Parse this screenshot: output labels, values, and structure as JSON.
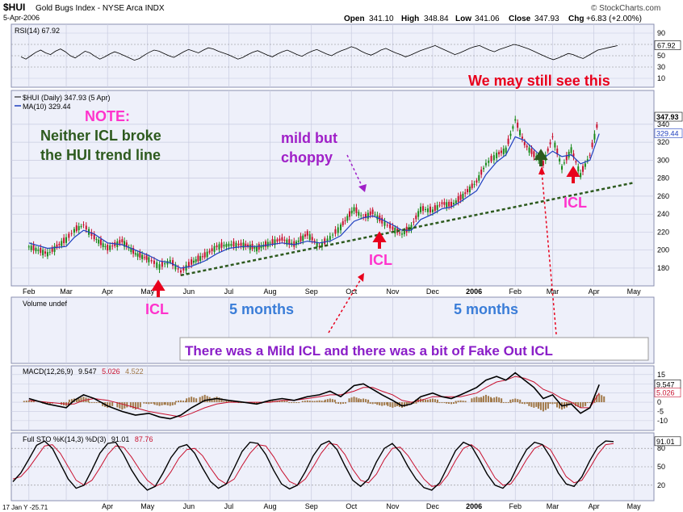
{
  "header": {
    "symbol": "$HUI",
    "name": "Gold Bugs Index - NYSE Arca INDX",
    "date": "5-Apr-2006",
    "open_label": "Open",
    "open": "341.10",
    "high_label": "High",
    "high": "348.84",
    "low_label": "Low",
    "low": "341.06",
    "close_label": "Close",
    "close": "347.93",
    "chg_label": "Chg",
    "chg": "+6.83 (+2.00%)",
    "watermark": "© StockCharts.com"
  },
  "colors": {
    "panel_bg": "#eef0fa",
    "grid": "#c8cbe0",
    "price_up": "#1a8a1a",
    "price_down": "#c8102e",
    "ma_line": "#1f3fbf",
    "trend_line": "#2d5a1e",
    "annot_red": "#e8001c",
    "annot_magenta": "#ff33cc",
    "annot_purple": "#a020c8",
    "annot_darkgreen": "#2d5a1e",
    "annot_blue": "#3a7dd8",
    "callout_purple": "#8a1ec8",
    "macd_line": "#000000",
    "signal_line": "#c8102e",
    "histogram": "#a07848"
  },
  "chart_data": [
    {
      "type": "line",
      "title": "RSI(14) 67.92",
      "last_value": 67.92,
      "ylim": [
        0,
        100
      ],
      "y_ticks": [
        90,
        70,
        50,
        30,
        10
      ],
      "y_tick_labels": [
        "90",
        "70",
        "50",
        "30",
        "10"
      ],
      "guides": [
        70,
        50,
        30
      ],
      "series": [
        {
          "name": "RSI(14)",
          "values": [
            48,
            44,
            50,
            56,
            60,
            55,
            52,
            58,
            62,
            57,
            50,
            46,
            52,
            58,
            55,
            49,
            44,
            48,
            53,
            57,
            54,
            50,
            46,
            42,
            45,
            51,
            56,
            60,
            58,
            54,
            50,
            47,
            52,
            57,
            61,
            58,
            55,
            60,
            64,
            62,
            58,
            55,
            52,
            48,
            44,
            47,
            52,
            56,
            59,
            55,
            51,
            48,
            53,
            57,
            60,
            56,
            52,
            49,
            54,
            58,
            61,
            57,
            53,
            50,
            55,
            59,
            62,
            66,
            63,
            58,
            54,
            51,
            55,
            60,
            63,
            59,
            55,
            52,
            48,
            51,
            55,
            59,
            62,
            65,
            68,
            64,
            60,
            56,
            52,
            55,
            59,
            63,
            66,
            68,
            64,
            60,
            57,
            61,
            64,
            67,
            70,
            68,
            65,
            62,
            58,
            54,
            50,
            46,
            43,
            46,
            50,
            54,
            52,
            48,
            45,
            50,
            55,
            60,
            62,
            64,
            66,
            67.92
          ]
        }
      ]
    },
    {
      "type": "line",
      "title": "$HUI (Daily) 347.93 (5 Apr)",
      "ma_title": "MA(10) 329.44",
      "x_tick_labels": [
        "Feb",
        "Mar",
        "Apr",
        "May",
        "Jun",
        "Jul",
        "Aug",
        "Sep",
        "Oct",
        "Nov",
        "Dec",
        "2006",
        "Feb",
        "Mar",
        "Apr",
        "May"
      ],
      "y_ticks": [
        180,
        200,
        220,
        240,
        260,
        280,
        300,
        320,
        340
      ],
      "y_tick_labels": [
        "180",
        "200",
        "220",
        "240",
        "260",
        "280",
        "300",
        "320",
        "340"
      ],
      "ylim": [
        162,
        374
      ],
      "last_close_label": "347.93",
      "last_ma_label": "329.44",
      "series": [
        {
          "name": "$HUI",
          "dates": [
            "2005-02-01",
            "2005-02-15",
            "2005-03-01",
            "2005-03-07",
            "2005-03-14",
            "2005-03-22",
            "2005-04-01",
            "2005-04-12",
            "2005-04-22",
            "2005-05-02",
            "2005-05-10",
            "2005-05-18",
            "2005-05-26",
            "2005-06-03",
            "2005-06-13",
            "2005-06-22",
            "2005-07-01",
            "2005-07-12",
            "2005-07-22",
            "2005-08-01",
            "2005-08-10",
            "2005-08-19",
            "2005-08-29",
            "2005-09-07",
            "2005-09-15",
            "2005-09-23",
            "2005-10-03",
            "2005-10-10",
            "2005-10-17",
            "2005-10-24",
            "2005-11-01",
            "2005-11-08",
            "2005-11-15",
            "2005-11-22",
            "2005-12-01",
            "2005-12-08",
            "2005-12-15",
            "2005-12-22",
            "2006-01-03",
            "2006-01-10",
            "2006-01-18",
            "2006-01-25",
            "2006-02-01",
            "2006-02-08",
            "2006-02-15",
            "2006-02-22",
            "2006-03-01",
            "2006-03-08",
            "2006-03-15",
            "2006-03-22",
            "2006-03-29",
            "2006-04-05"
          ],
          "values": [
            204,
            196,
            212,
            222,
            228,
            214,
            202,
            210,
            196,
            190,
            182,
            188,
            176,
            186,
            194,
            204,
            206,
            206,
            202,
            208,
            212,
            206,
            218,
            204,
            214,
            226,
            246,
            236,
            242,
            232,
            224,
            218,
            226,
            246,
            244,
            252,
            250,
            258,
            276,
            296,
            306,
            312,
            345,
            318,
            306,
            296,
            326,
            292,
            312,
            284,
            306,
            347.93
          ]
        },
        {
          "name": "MA(10)",
          "values": [
            208,
            202,
            204,
            214,
            222,
            218,
            208,
            206,
            200,
            194,
            188,
            186,
            180,
            182,
            188,
            196,
            202,
            204,
            204,
            206,
            208,
            206,
            210,
            208,
            210,
            216,
            232,
            236,
            238,
            234,
            228,
            222,
            222,
            234,
            240,
            246,
            248,
            254,
            266,
            284,
            298,
            306,
            326,
            322,
            312,
            302,
            310,
            304,
            306,
            296,
            300,
            329.44
          ]
        },
        {
          "name": "trend line",
          "dates": [
            "2005-05-26",
            "2006-05-01"
          ],
          "values": [
            172,
            275
          ]
        }
      ]
    },
    {
      "type": "bar",
      "title": "Volume undef"
    },
    {
      "type": "line",
      "title_prefix": "MACD(12,26,9)",
      "macd": "9.547",
      "signal": "5.026",
      "hist": "4.522",
      "ylim": [
        -14,
        18
      ],
      "y_ticks": [
        15,
        10,
        5,
        0,
        -5,
        -10
      ],
      "y_tick_labels": [
        "15",
        "10",
        "5",
        "0",
        "-5",
        "-10"
      ],
      "last_macd_label": "9.547",
      "last_signal_label": "5.026",
      "series": [
        {
          "name": "MACD",
          "values": [
            2,
            -1,
            -3,
            1,
            4,
            2,
            -2,
            -5,
            -7,
            -6,
            -8,
            -9,
            -7,
            -3,
            1,
            2,
            1,
            0,
            -1,
            1,
            2,
            1,
            3,
            4,
            6,
            3,
            9,
            10,
            7,
            4,
            1,
            -2,
            -1,
            3,
            5,
            3,
            2,
            4,
            8,
            12,
            14,
            12,
            16,
            12,
            8,
            2,
            4,
            -2,
            -1,
            -6,
            -3,
            9.547
          ]
        },
        {
          "name": "Signal",
          "values": [
            1,
            0,
            -1,
            -1,
            1,
            2,
            1,
            -1,
            -3,
            -5,
            -6,
            -7,
            -8,
            -6,
            -3,
            -1,
            0,
            0,
            0,
            0,
            1,
            1,
            2,
            3,
            4,
            4,
            6,
            8,
            8,
            6,
            4,
            1,
            0,
            1,
            3,
            3,
            3,
            3,
            5,
            8,
            11,
            12,
            14,
            13,
            11,
            7,
            5,
            2,
            0,
            -3,
            -3,
            5.026
          ]
        },
        {
          "name": "Histogram",
          "values": [
            1,
            -1,
            -2,
            2,
            3,
            0,
            -3,
            -4,
            -4,
            -1,
            -2,
            -2,
            1,
            3,
            4,
            3,
            1,
            0,
            -1,
            1,
            1,
            0,
            1,
            1,
            2,
            -1,
            3,
            2,
            -1,
            -2,
            -3,
            -3,
            -1,
            2,
            2,
            0,
            -1,
            1,
            3,
            4,
            3,
            0,
            2,
            -1,
            -3,
            -5,
            -1,
            -4,
            -1,
            -3,
            0,
            4.522
          ]
        }
      ]
    },
    {
      "type": "line",
      "title_prefix": "Full STO %K(14,3) %D(3)",
      "k": "91.01",
      "d": "87.76",
      "ylim": [
        0,
        100
      ],
      "y_ticks": [
        80,
        50,
        20
      ],
      "y_tick_labels": [
        "80",
        "50",
        "20"
      ],
      "guides": [
        80,
        50,
        20
      ],
      "last_label": "91.01",
      "x_tick_labels": [
        "Apr",
        "May",
        "Jun",
        "Jul",
        "Aug",
        "Sep",
        "Oct",
        "Nov",
        "Dec",
        "2006",
        "Feb",
        "Mar",
        "Apr",
        "May"
      ],
      "series": [
        {
          "name": "%K",
          "values": [
            25.71,
            40,
            62,
            85,
            92,
            80,
            55,
            30,
            15,
            20,
            45,
            72,
            88,
            90,
            70,
            45,
            25,
            12,
            18,
            40,
            65,
            82,
            86,
            72,
            48,
            26,
            15,
            22,
            48,
            75,
            90,
            88,
            70,
            44,
            22,
            14,
            20,
            42,
            68,
            86,
            92,
            78,
            52,
            28,
            18,
            30,
            58,
            80,
            88,
            74,
            50,
            30,
            16,
            12,
            24,
            50,
            76,
            90,
            84,
            62,
            38,
            20,
            15,
            28,
            55,
            78,
            90,
            86,
            66,
            40,
            22,
            18,
            34,
            60,
            82,
            92,
            91.01
          ]
        },
        {
          "name": "%D",
          "values": [
            30,
            34,
            48,
            66,
            84,
            86,
            72,
            50,
            28,
            20,
            28,
            48,
            70,
            84,
            82,
            66,
            46,
            28,
            18,
            24,
            42,
            64,
            78,
            80,
            68,
            48,
            30,
            22,
            30,
            52,
            72,
            86,
            84,
            66,
            44,
            26,
            20,
            30,
            50,
            72,
            88,
            86,
            70,
            46,
            28,
            24,
            38,
            62,
            80,
            82,
            68,
            48,
            30,
            18,
            20,
            36,
            60,
            80,
            86,
            76,
            54,
            32,
            20,
            22,
            40,
            62,
            80,
            86,
            78,
            56,
            34,
            24,
            28,
            48,
            70,
            86,
            87.76
          ]
        }
      ],
      "first_label": "17 Jan Y -25.71"
    }
  ],
  "annotations": {
    "note_title": "NOTE:",
    "note_line1": "Neither ICL broke",
    "note_line2": "the HUI trend line",
    "mild_line1": "mild but",
    "mild_line2": "choppy",
    "may_still": "We may still see this",
    "icl1": "ICL",
    "icl2": "ICL",
    "icl3": "ICL",
    "months1": "5 months",
    "months2": "5 months",
    "callout": "There was a Mild ICL and there was a bit of  Fake Out  ICL"
  }
}
